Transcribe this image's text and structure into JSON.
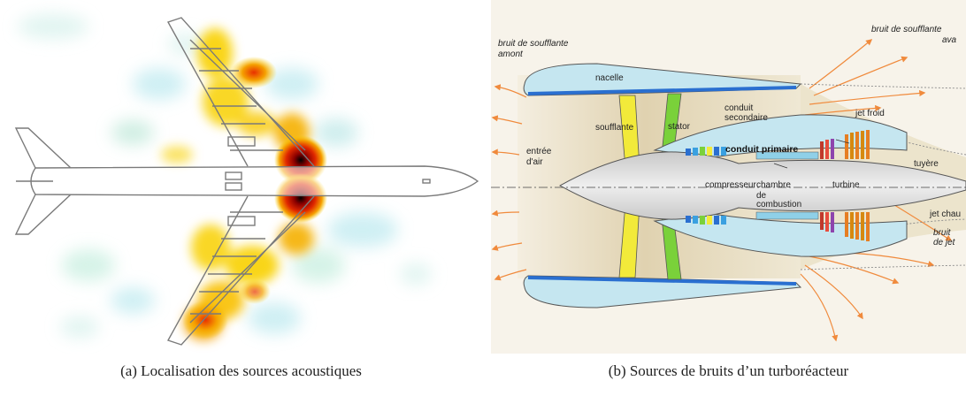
{
  "panel_a": {
    "caption": "(a) Localisation des sources acoustiques"
  },
  "panel_b": {
    "caption": "(b) Sources de bruits d’un turboréacteur",
    "labels": {
      "upstream_fan_noise_1": "bruit de soufflante",
      "upstream_fan_noise_2": "amont",
      "downstream_fan_noise_1": "bruit de soufflante",
      "downstream_fan_noise_2": "ava",
      "nacelle": "nacelle",
      "stator": "stator",
      "fan": "soufflante",
      "secondary_duct_1": "conduit",
      "secondary_duct_2": "secondaire",
      "cold_jet": "jet froid",
      "air_inlet_1": "entrée",
      "air_inlet_2": "d'air",
      "primary_duct": "conduit primaire",
      "nozzle": "tuyère",
      "compressor": "compresseur",
      "combustion_1": "chambre",
      "combustion_2": "de",
      "combustion_3": "combustion",
      "turbine": "turbine",
      "hot_jet": "jet chau",
      "jet_noise_1": "bruit",
      "jet_noise_2": "de jet"
    }
  },
  "colors": {
    "nacelle": "#c5e6f0",
    "nacelle_edge": "#2a6fd0",
    "fan": "#f2ea3a",
    "stator": "#7ad13a",
    "core": "#d9d9d9",
    "duct_bg": "#dccda8",
    "noise_arrow": "#f08a3c",
    "heat_low": "#bfeaf0",
    "heat_mid": "#f8d000",
    "heat_high": "#e83000"
  }
}
